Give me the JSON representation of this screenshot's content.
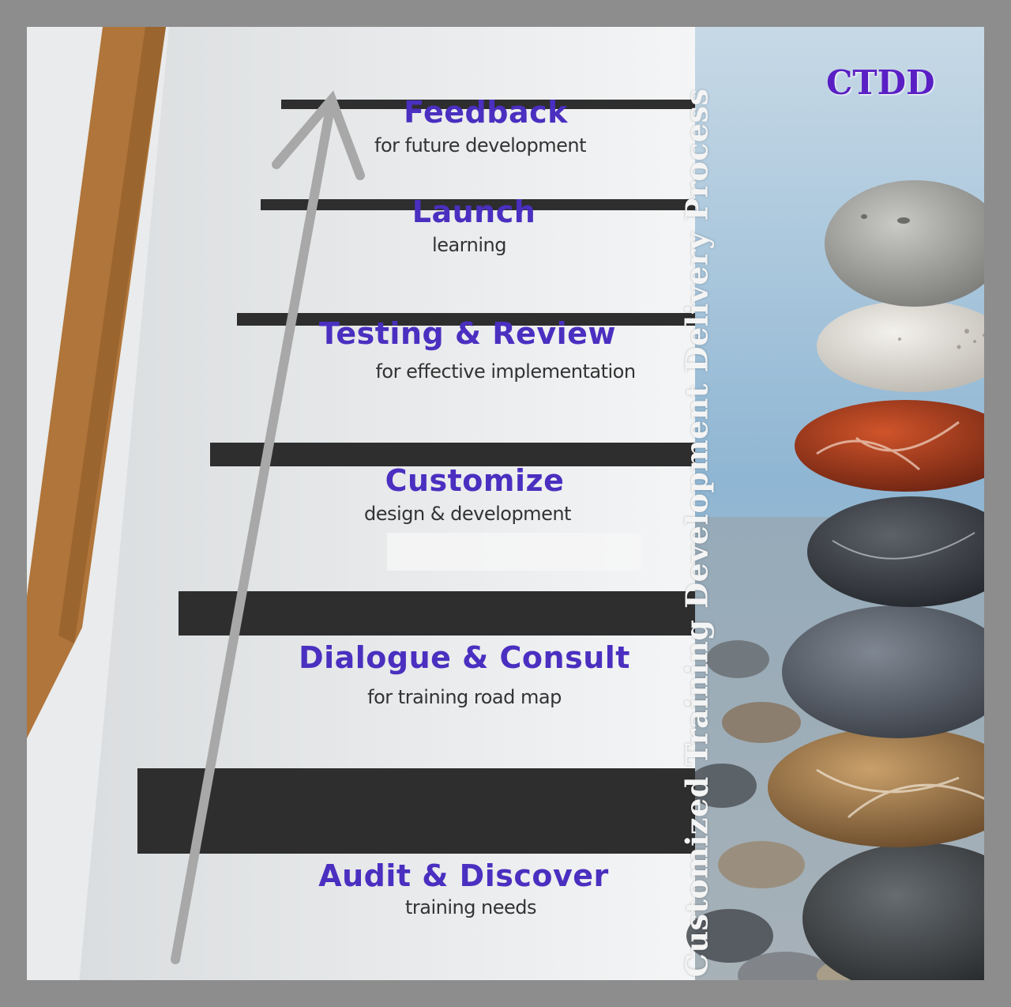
{
  "badge": "CTDD",
  "vertical_title": "Customized Training Development Delivery Process",
  "steps": [
    {
      "title": "Feedback",
      "subtitle": "for future development"
    },
    {
      "title": "Launch",
      "subtitle": "learning"
    },
    {
      "title": "Testing & Review",
      "subtitle": "for effective implementation"
    },
    {
      "title": "Customize",
      "subtitle": "design & development"
    },
    {
      "title": "Dialogue & Consult",
      "subtitle": "for training road map"
    },
    {
      "title": "Audit & Discover",
      "subtitle": "training needs"
    }
  ],
  "colors": {
    "title": "#4a2fc0",
    "subtitle": "#333333",
    "badge": "#5a1fc4",
    "frame": "#8d8d8d",
    "tread": "#2e2e2e",
    "handrail": "#b0753a",
    "arrow": "#a8a8a8"
  }
}
